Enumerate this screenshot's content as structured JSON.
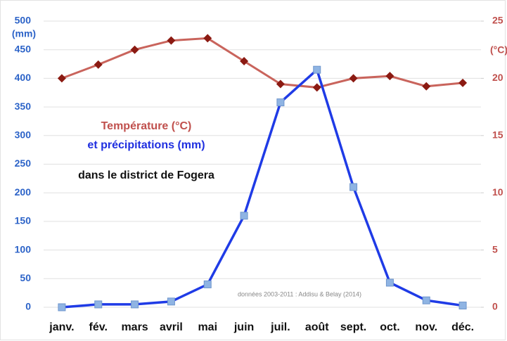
{
  "chart_data": {
    "type": "line",
    "title": "Température (°C)",
    "subtitle": "et précipitations (mm)",
    "caption": "dans le district de Fogera",
    "annotation": "données 2003-2011 : Addisu & Belay (2014)",
    "ylabel": "(mm)",
    "y2label": "(°C)",
    "categories": [
      "janv.",
      "fév.",
      "mars",
      "avril",
      "mai",
      "juin",
      "juil.",
      "août",
      "sept.",
      "oct.",
      "nov.",
      "déc."
    ],
    "series": [
      {
        "name": "précipitations (mm)",
        "color": "#1f3be6",
        "marker_color": "#8fb4e3",
        "marker": "square",
        "axis": "y",
        "values": [
          0,
          5,
          5,
          10,
          40,
          160,
          358,
          415,
          210,
          43,
          12,
          3
        ]
      },
      {
        "name": "Température (°C)",
        "color": "#c9645c",
        "marker_color": "#8b1a12",
        "marker": "diamond",
        "axis": "y2",
        "values": [
          20.0,
          21.2,
          22.5,
          23.3,
          23.5,
          21.5,
          19.5,
          19.2,
          20.0,
          20.2,
          19.3,
          19.6
        ]
      }
    ],
    "ylim": [
      0,
      500
    ],
    "yticks": [
      0,
      50,
      100,
      150,
      200,
      250,
      300,
      350,
      400,
      450,
      500
    ],
    "y2lim": [
      0,
      25
    ],
    "y2ticks": [
      0,
      5,
      10,
      15,
      20,
      25
    ],
    "ycolor": "#2c63c8",
    "y2color": "#c0504d",
    "grid": true
  }
}
